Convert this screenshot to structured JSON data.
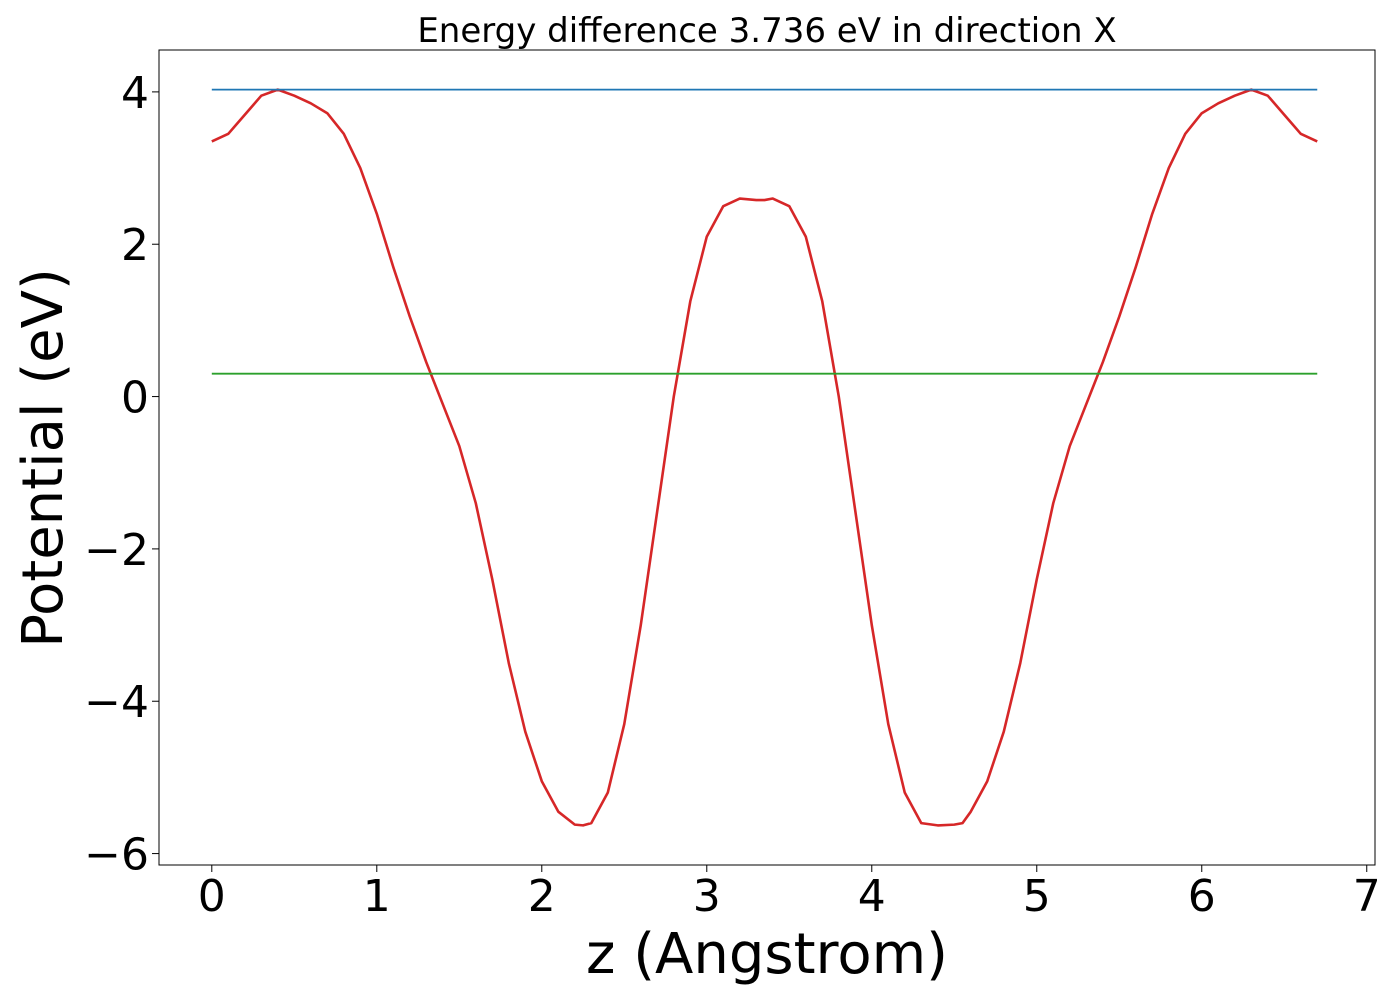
{
  "chart_data": {
    "type": "line",
    "title": "Energy difference 3.736 eV in direction X",
    "xlabel": "z (Angstrom)",
    "ylabel": "Potential (eV)",
    "xlim": [
      -0.32,
      7.05
    ],
    "ylim": [
      -6.15,
      4.55
    ],
    "xticks": [
      0,
      1,
      2,
      3,
      4,
      5,
      6,
      7
    ],
    "xtick_labels": [
      "0",
      "1",
      "2",
      "3",
      "4",
      "5",
      "6",
      "7"
    ],
    "yticks": [
      4,
      2,
      0,
      -2,
      -4,
      -6
    ],
    "ytick_labels": [
      "4",
      "2",
      "0",
      "−2",
      "−4",
      "−6"
    ],
    "grid": false,
    "series": [
      {
        "color": "#d62728",
        "x": [
          0.0,
          0.1,
          0.2,
          0.3,
          0.4,
          0.5,
          0.6,
          0.7,
          0.8,
          0.9,
          1.0,
          1.1,
          1.2,
          1.3,
          1.4,
          1.5,
          1.6,
          1.7,
          1.8,
          1.9,
          2.0,
          2.1,
          2.2,
          2.25,
          2.3,
          2.4,
          2.5,
          2.6,
          2.7,
          2.8,
          2.9,
          3.0,
          3.1,
          3.2,
          3.3,
          3.35,
          3.4,
          3.5,
          3.6,
          3.7,
          3.8,
          3.9,
          4.0,
          4.1,
          4.2,
          4.3,
          4.4,
          4.5,
          4.55,
          4.6,
          4.7,
          4.8,
          4.9,
          5.0,
          5.1,
          5.2,
          5.3,
          5.4,
          5.5,
          5.6,
          5.7,
          5.8,
          5.9,
          6.0,
          6.1,
          6.2,
          6.3,
          6.4,
          6.5,
          6.6,
          6.7
        ],
        "values": [
          3.35,
          3.45,
          3.7,
          3.95,
          4.03,
          3.95,
          3.85,
          3.72,
          3.45,
          3.0,
          2.4,
          1.7,
          1.05,
          0.45,
          -0.1,
          -0.65,
          -1.4,
          -2.4,
          -3.5,
          -4.4,
          -5.05,
          -5.45,
          -5.62,
          -5.63,
          -5.6,
          -5.2,
          -4.3,
          -3.0,
          -1.5,
          0.0,
          1.25,
          2.1,
          2.5,
          2.6,
          2.58,
          2.58,
          2.6,
          2.5,
          2.1,
          1.25,
          0.0,
          -1.5,
          -3.0,
          -4.3,
          -5.2,
          -5.6,
          -5.63,
          -5.62,
          -5.6,
          -5.45,
          -5.05,
          -4.4,
          -3.5,
          -2.4,
          -1.4,
          -0.65,
          -0.1,
          0.45,
          1.05,
          1.7,
          2.4,
          3.0,
          3.45,
          3.72,
          3.85,
          3.95,
          4.03,
          3.95,
          3.7,
          3.45,
          3.35
        ]
      },
      {
        "color": "#1f77b4",
        "x": [
          0.0,
          6.7
        ],
        "values": [
          4.03,
          4.03
        ]
      },
      {
        "color": "#2ca02c",
        "x": [
          0.0,
          6.7
        ],
        "values": [
          0.3,
          0.3
        ]
      }
    ]
  }
}
